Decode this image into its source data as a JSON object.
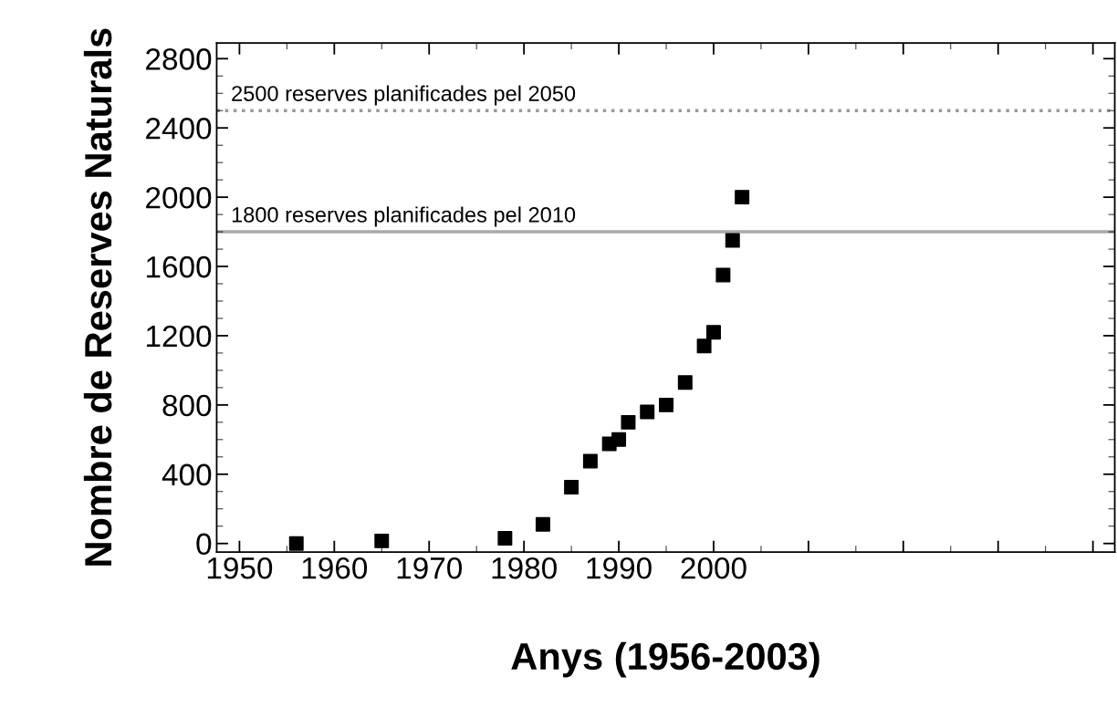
{
  "chart_data": {
    "type": "scatter",
    "xlabel": "Anys (1956-2003)",
    "ylabel": "Nombre de Reserves Naturals",
    "x": [
      1956,
      1965,
      1978,
      1982,
      1985,
      1987,
      1989,
      1990,
      1991,
      1993,
      1995,
      1997,
      1999,
      2000,
      2001,
      2002,
      2003
    ],
    "series": [
      {
        "color": "#000000",
        "values": [
          0,
          15,
          30,
          110,
          325,
          475,
          575,
          600,
          700,
          760,
          800,
          930,
          1140,
          1220,
          1550,
          1750,
          2000
        ]
      }
    ],
    "marker": "square",
    "xlim": [
      1947.6,
      2042.3
    ],
    "ylim": [
      -50,
      2890
    ],
    "xticks": [
      1950,
      1960,
      1970,
      1980,
      1990,
      2000,
      {
        "value": 2010,
        "label": null
      },
      {
        "value": 2020,
        "label": null
      },
      {
        "value": 2030,
        "label": null
      },
      {
        "value": 2040,
        "label": null
      }
    ],
    "yticks": [
      0,
      400,
      800,
      1200,
      1600,
      2000,
      2400,
      2800
    ],
    "ref_lines": [
      {
        "axis": "y",
        "value": 2500,
        "label": "2500 reserves planificades pel 2050",
        "color": "#999999",
        "line_style": "dotted"
      },
      {
        "axis": "y",
        "value": 1800,
        "label": "1800 reserves planificades pel 2010",
        "color": "#aaaaaa",
        "line_style": "solid"
      }
    ],
    "grid": false,
    "legend": false
  }
}
